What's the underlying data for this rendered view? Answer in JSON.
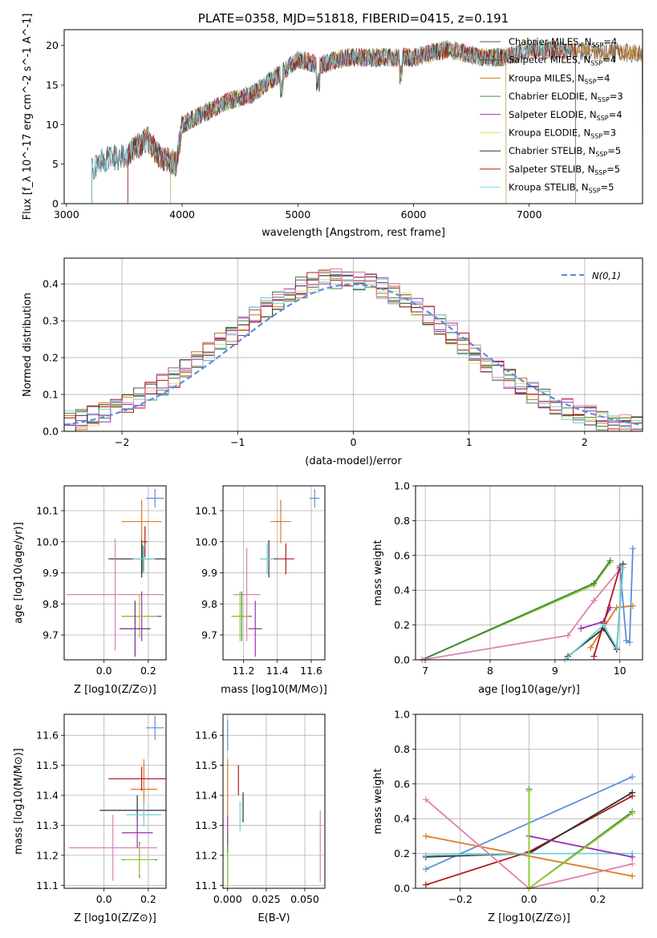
{
  "chart_data": [
    {
      "id": "spectrum",
      "type": "line",
      "title": "PLATE=0358, MJD=51818, FIBERID=0415, z=0.191",
      "xlabel": "wavelength [Angstrom, rest frame]",
      "ylabel": "Flux [f_λ 10^-17 erg cm^-2 s^-1 A^-1]",
      "xlim": [
        2980,
        7980
      ],
      "ylim": [
        0,
        22
      ],
      "xticks": [
        3000,
        4000,
        5000,
        6000,
        7000
      ],
      "yticks": [
        0,
        5,
        10,
        15,
        20
      ],
      "legend_position": "upper right",
      "grid": false,
      "spectrum_envelope": [
        [
          3220,
          4.2
        ],
        [
          3300,
          5.5
        ],
        [
          3500,
          6.0
        ],
        [
          3700,
          8.2
        ],
        [
          3800,
          6.0
        ],
        [
          3950,
          5.0
        ],
        [
          4000,
          10.0
        ],
        [
          4200,
          11.5
        ],
        [
          4400,
          13.0
        ],
        [
          4600,
          13.8
        ],
        [
          4850,
          16.5
        ],
        [
          5000,
          18.2
        ],
        [
          5200,
          17.5
        ],
        [
          5400,
          18.5
        ],
        [
          5800,
          18.5
        ],
        [
          6000,
          18.5
        ],
        [
          6300,
          19.5
        ],
        [
          6600,
          18.5
        ],
        [
          6800,
          18.5
        ],
        [
          7000,
          19.5
        ],
        [
          7400,
          19.3
        ],
        [
          7980,
          19.0
        ]
      ],
      "series": [
        {
          "name": "Chabrier MILES, N_SSP=4",
          "color": "#555555",
          "start": 3220,
          "end": 7980
        },
        {
          "name": "Salpeter MILES, N_SSP=4",
          "color": "#4b4b4b",
          "start": 3220,
          "end": 7980
        },
        {
          "name": "Kroupa MILES, N_SSP=4",
          "color": "#d08020",
          "start": 3530,
          "end": 7980
        },
        {
          "name": "Chabrier ELODIE, N_SSP=3",
          "color": "#3f8a3f",
          "start": 3900,
          "end": 6800
        },
        {
          "name": "Salpeter ELODIE, N_SSP=4",
          "color": "#9a2eb0",
          "start": 3900,
          "end": 6800
        },
        {
          "name": "Kroupa ELODIE, N_SSP=3",
          "color": "#e8e060",
          "start": 3900,
          "end": 6800
        },
        {
          "name": "Chabrier STELIB, N_SSP=5",
          "color": "#303030",
          "start": 3530,
          "end": 7400
        },
        {
          "name": "Salpeter STELIB, N_SSP=5",
          "color": "#b01818",
          "start": 3530,
          "end": 7400
        },
        {
          "name": "Kroupa STELIB, N_SSP=5",
          "color": "#7ed8e8",
          "start": 3220,
          "end": 7400
        }
      ]
    },
    {
      "id": "residuals",
      "type": "line",
      "xlabel": "(data-model)/error",
      "ylabel": "Normed distribution",
      "xlim": [
        -2.5,
        2.5
      ],
      "ylim": [
        0,
        0.47
      ],
      "xticks": [
        -2,
        -1,
        0,
        1,
        2
      ],
      "yticks": [
        0.0,
        0.1,
        0.2,
        0.3,
        0.4
      ],
      "legend_position": "upper right",
      "grid": true,
      "legend": [
        {
          "name": "N(0,1)",
          "color": "#5b8fd9",
          "style": "dashed"
        }
      ],
      "series_colors": [
        "#555555",
        "#d07020",
        "#3f8a3f",
        "#9a2eb0",
        "#e0e070",
        "#303030",
        "#b01818",
        "#6ccfdc",
        "#e080b0"
      ]
    },
    {
      "id": "age-vs-Z",
      "type": "scatter",
      "xlabel": "Z [log10(Z/Z⊙)]",
      "ylabel": "age  [log10(age/yr)]",
      "xlim": [
        -0.18,
        0.28
      ],
      "ylim": [
        9.62,
        10.18
      ],
      "xticks": [
        0.0,
        0.2
      ],
      "yticks": [
        9.7,
        9.8,
        9.9,
        10.0,
        10.1
      ],
      "grid": true,
      "points": [
        {
          "color": "#5b8fd9",
          "x": 0.23,
          "y": 10.14,
          "xe": 0.04,
          "ye": 0.03
        },
        {
          "color": "#e07b22",
          "x": 0.17,
          "y": 10.065,
          "xe": 0.09,
          "ye": 0.07
        },
        {
          "color": "#b01818",
          "x": 0.185,
          "y": 10.0,
          "xe": 0.01,
          "ye": 0.05
        },
        {
          "color": "#3f8a3f",
          "x": 0.175,
          "y": 9.945,
          "xe": 0.14,
          "ye": 0.045
        },
        {
          "color": "#303030",
          "x": 0.17,
          "y": 9.945,
          "xe": 0.15,
          "ye": 0.06
        },
        {
          "color": "#6ccfdc",
          "x": 0.18,
          "y": 9.945,
          "xe": 0.05,
          "ye": 0.04
        },
        {
          "color": "#e080b0",
          "x": 0.05,
          "y": 9.83,
          "xe": 0.22,
          "ye": 0.18
        },
        {
          "color": "#9a2eb0",
          "x": 0.17,
          "y": 9.76,
          "xe": 0.09,
          "ye": 0.08
        },
        {
          "color": "#9acd32",
          "x": 0.16,
          "y": 9.76,
          "xe": 0.08,
          "ye": 0.07
        },
        {
          "color": "#7a2a8a",
          "x": 0.14,
          "y": 9.72,
          "xe": 0.07,
          "ye": 0.09
        }
      ]
    },
    {
      "id": "age-vs-mass",
      "type": "scatter",
      "xlabel": "mass [log10(M/M⊙)]",
      "ylabel": "",
      "xlim": [
        11.08,
        11.68
      ],
      "ylim": [
        9.62,
        10.18
      ],
      "xticks": [
        11.2,
        11.4,
        11.6
      ],
      "yticks": [
        9.7,
        9.8,
        9.9,
        10.0,
        10.1
      ],
      "grid": true,
      "points": [
        {
          "color": "#5b8fd9",
          "x": 11.62,
          "y": 10.14,
          "xe": 0.03,
          "ye": 0.03
        },
        {
          "color": "#e07b22",
          "x": 11.42,
          "y": 10.065,
          "xe": 0.06,
          "ye": 0.07
        },
        {
          "color": "#b01818",
          "x": 11.45,
          "y": 9.945,
          "xe": 0.05,
          "ye": 0.05
        },
        {
          "color": "#303030",
          "x": 11.35,
          "y": 9.945,
          "xe": 0.05,
          "ye": 0.06
        },
        {
          "color": "#6ccfdc",
          "x": 11.34,
          "y": 9.945,
          "xe": 0.04,
          "ye": 0.05
        },
        {
          "color": "#e080b0",
          "x": 11.22,
          "y": 9.83,
          "xe": 0.08,
          "ye": 0.15
        },
        {
          "color": "#3f8a3f",
          "x": 11.19,
          "y": 9.76,
          "xe": 0.06,
          "ye": 0.08
        },
        {
          "color": "#9acd32",
          "x": 11.18,
          "y": 9.76,
          "xe": 0.05,
          "ye": 0.08
        },
        {
          "color": "#9a2eb0",
          "x": 11.27,
          "y": 9.72,
          "xe": 0.04,
          "ye": 0.09
        }
      ]
    },
    {
      "id": "massweight-vs-age",
      "type": "line",
      "xlabel": "age  [log10(age/yr)]",
      "ylabel": "mass weight",
      "xlim": [
        6.85,
        10.35
      ],
      "ylim": [
        0,
        1.0
      ],
      "xticks": [
        7,
        8,
        9,
        10
      ],
      "yticks": [
        0.0,
        0.2,
        0.4,
        0.6,
        0.8,
        1.0
      ],
      "grid": true,
      "series": [
        {
          "color": "#9acd32",
          "x": [
            6.95,
            9.6,
            9.85
          ],
          "y": [
            0.0,
            0.43,
            0.56
          ]
        },
        {
          "color": "#3f8a3f",
          "x": [
            6.95,
            9.6,
            9.85
          ],
          "y": [
            0.0,
            0.44,
            0.57
          ]
        },
        {
          "color": "#e080b0",
          "x": [
            6.95,
            9.2,
            9.6,
            10.0
          ],
          "y": [
            0.0,
            0.14,
            0.34,
            0.52
          ]
        },
        {
          "color": "#9a2eb0",
          "x": [
            9.4,
            9.75,
            9.85
          ],
          "y": [
            0.18,
            0.22,
            0.3
          ]
        },
        {
          "color": "#e07b22",
          "x": [
            9.55,
            9.95,
            10.2
          ],
          "y": [
            0.07,
            0.3,
            0.31
          ]
        },
        {
          "color": "#5b8fd9",
          "x": [
            10.0,
            10.1,
            10.15,
            10.2
          ],
          "y": [
            0.54,
            0.11,
            0.1,
            0.64
          ]
        },
        {
          "color": "#b01818",
          "x": [
            9.6,
            9.75,
            10.0
          ],
          "y": [
            0.02,
            0.21,
            0.53
          ]
        },
        {
          "color": "#303030",
          "x": [
            9.2,
            9.75,
            9.95,
            10.05
          ],
          "y": [
            0.02,
            0.18,
            0.06,
            0.55
          ]
        },
        {
          "color": "#6ccfdc",
          "x": [
            9.15,
            9.75,
            9.95,
            10.05
          ],
          "y": [
            0.0,
            0.2,
            0.07,
            0.53
          ]
        }
      ]
    },
    {
      "id": "mass-vs-Z",
      "type": "scatter",
      "xlabel": "Z [log10(Z/Z⊙)]",
      "ylabel": "mass [log10(M/M⊙)]",
      "xlim": [
        -0.18,
        0.28
      ],
      "ylim": [
        11.09,
        11.67
      ],
      "xticks": [
        0.0,
        0.2
      ],
      "yticks": [
        11.1,
        11.2,
        11.3,
        11.4,
        11.5,
        11.6
      ],
      "grid": true,
      "points": [
        {
          "color": "#5b8fd9",
          "x": 0.23,
          "y": 11.625,
          "xe": 0.04,
          "ye": 0.04
        },
        {
          "color": "#e07b22",
          "x": 0.18,
          "y": 11.42,
          "xe": 0.06,
          "ye": 0.1
        },
        {
          "color": "#b01818",
          "x": 0.17,
          "y": 11.455,
          "xe": 0.15,
          "ye": 0.04
        },
        {
          "color": "#303030",
          "x": 0.15,
          "y": 11.35,
          "xe": 0.17,
          "ye": 0.05
        },
        {
          "color": "#6ccfdc",
          "x": 0.18,
          "y": 11.335,
          "xe": 0.08,
          "ye": 0.04
        },
        {
          "color": "#e080b0",
          "x": 0.04,
          "y": 11.225,
          "xe": 0.2,
          "ye": 0.11
        },
        {
          "color": "#9a2eb0",
          "x": 0.15,
          "y": 11.275,
          "xe": 0.07,
          "ye": 0.05
        },
        {
          "color": "#3f8a3f",
          "x": 0.16,
          "y": 11.185,
          "xe": 0.08,
          "ye": 0.06
        },
        {
          "color": "#9acd32",
          "x": 0.16,
          "y": 11.185,
          "xe": 0.07,
          "ye": 0.05
        }
      ]
    },
    {
      "id": "mass-vs-ebv",
      "type": "scatter",
      "xlabel": "E(B-V)",
      "ylabel": "",
      "xlim": [
        -0.003,
        0.063
      ],
      "ylim": [
        11.09,
        11.67
      ],
      "xticks": [
        0.0,
        0.025,
        0.05
      ],
      "yticks": [
        11.1,
        11.2,
        11.3,
        11.4,
        11.5,
        11.6
      ],
      "grid": true,
      "points": [
        {
          "color": "#5b8fd9",
          "x": 0.0,
          "y": 11.6,
          "xe": 0.0,
          "ye": 0.05
        },
        {
          "color": "#e07b22",
          "x": 0.0,
          "y": 11.42,
          "xe": 0.0,
          "ye": 0.1
        },
        {
          "color": "#b01818",
          "x": 0.007,
          "y": 11.45,
          "xe": 0.0,
          "ye": 0.05
        },
        {
          "color": "#303030",
          "x": 0.01,
          "y": 11.36,
          "xe": 0.0,
          "ye": 0.05
        },
        {
          "color": "#6ccfdc",
          "x": 0.008,
          "y": 11.33,
          "xe": 0.0,
          "ye": 0.05
        },
        {
          "color": "#9a2eb0",
          "x": 0.0,
          "y": 11.28,
          "xe": 0.0,
          "ye": 0.05
        },
        {
          "color": "#3f8a3f",
          "x": 0.0,
          "y": 11.19,
          "xe": 0.0,
          "ye": 0.08
        },
        {
          "color": "#9acd32",
          "x": 0.0,
          "y": 11.15,
          "xe": 0.0,
          "ye": 0.06
        },
        {
          "color": "#e080b0",
          "x": 0.06,
          "y": 11.23,
          "xe": 0.0,
          "ye": 0.12
        }
      ]
    },
    {
      "id": "massweight-vs-Z",
      "type": "line",
      "xlabel": "Z [log10(Z/Z⊙)]",
      "ylabel": "mass weight",
      "xlim": [
        -0.33,
        0.33
      ],
      "ylim": [
        0,
        1.0
      ],
      "xticks": [
        -0.2,
        0.0,
        0.2
      ],
      "yticks": [
        0.0,
        0.2,
        0.4,
        0.6,
        0.8,
        1.0
      ],
      "grid": true,
      "series": [
        {
          "color": "#5b8fd9",
          "x": [
            -0.3,
            0.3
          ],
          "y": [
            0.11,
            0.64
          ]
        },
        {
          "color": "#e07b22",
          "x": [
            -0.3,
            0.3
          ],
          "y": [
            0.3,
            0.07
          ]
        },
        {
          "color": "#b01818",
          "x": [
            -0.3,
            0.0,
            0.3
          ],
          "y": [
            0.02,
            0.21,
            0.53
          ]
        },
        {
          "color": "#303030",
          "x": [
            -0.3,
            0.0,
            0.3
          ],
          "y": [
            0.18,
            0.2,
            0.55
          ]
        },
        {
          "color": "#6ccfdc",
          "x": [
            -0.3,
            0.0,
            0.3
          ],
          "y": [
            0.19,
            0.2,
            0.2
          ]
        },
        {
          "color": "#e080b0",
          "x": [
            -0.3,
            0.0,
            0.3
          ],
          "y": [
            0.51,
            0.0,
            0.14
          ]
        },
        {
          "color": "#9a2eb0",
          "x": [
            0.0,
            0.3
          ],
          "y": [
            0.3,
            0.18
          ]
        },
        {
          "color": "#3f8a3f",
          "x": [
            0.0,
            0.0,
            0.3
          ],
          "y": [
            0.57,
            0.0,
            0.44
          ]
        },
        {
          "color": "#9acd32",
          "x": [
            0.0,
            0.0,
            0.3
          ],
          "y": [
            0.56,
            0.0,
            0.43
          ]
        }
      ]
    }
  ]
}
